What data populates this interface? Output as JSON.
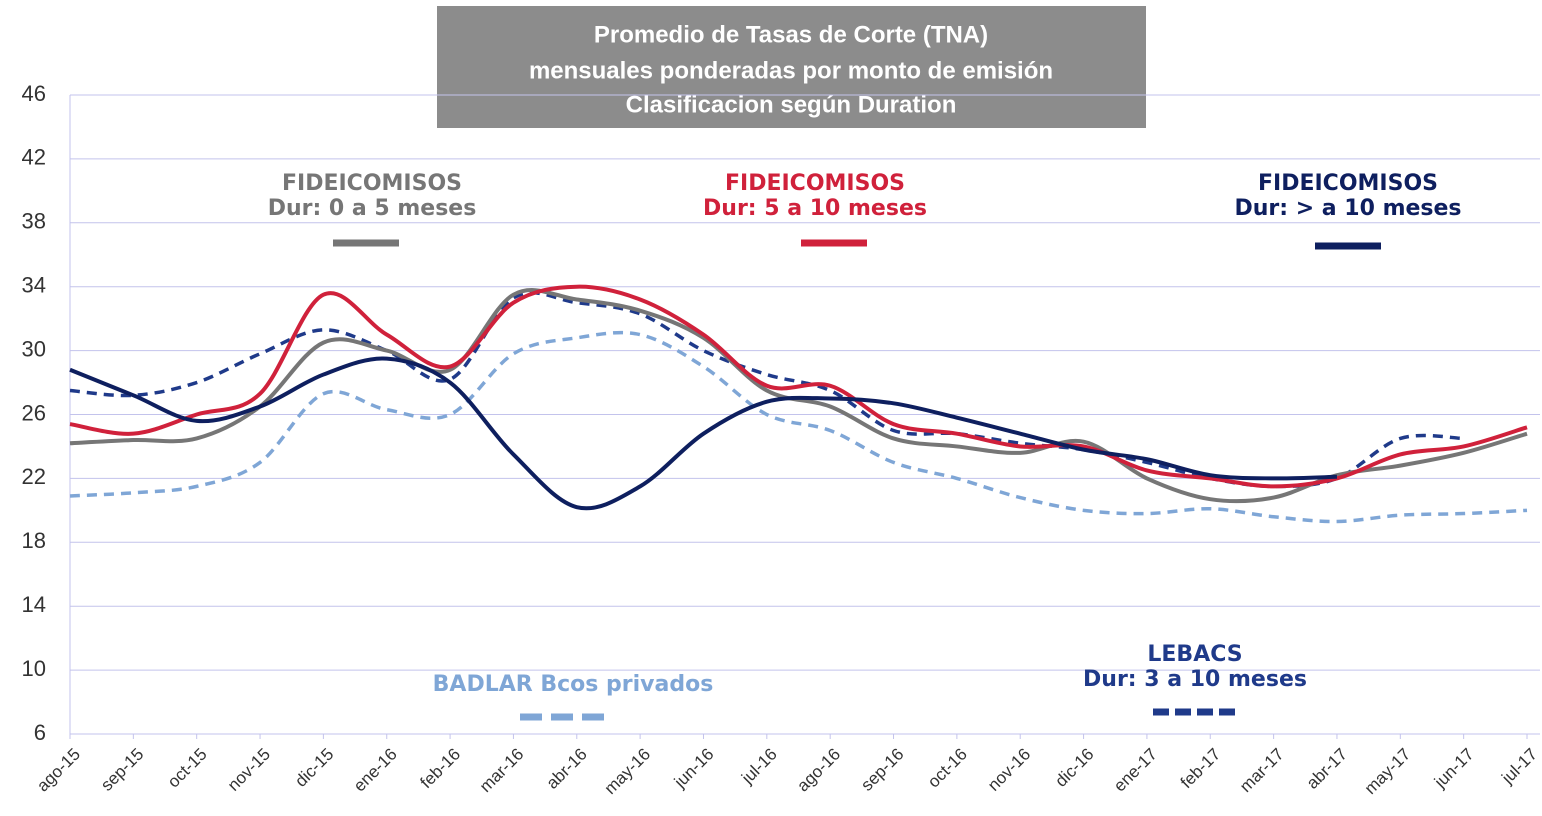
{
  "chart_data": {
    "type": "line",
    "title": [
      "Promedio de Tasas de Corte (TNA)",
      "mensuales ponderadas por monto de emisión",
      "Clasificacion según Duration"
    ],
    "categories": [
      "ago-15",
      "sep-15",
      "oct-15",
      "nov-15",
      "dic-15",
      "ene-16",
      "feb-16",
      "mar-16",
      "abr-16",
      "may-16",
      "jun-16",
      "jul-16",
      "ago-16",
      "sep-16",
      "oct-16",
      "nov-16",
      "dic-16",
      "ene-17",
      "feb-17",
      "mar-17",
      "abr-17",
      "may-17",
      "jun-17",
      "jul-17"
    ],
    "ylim": [
      6,
      46
    ],
    "yticks": [
      6,
      10,
      14,
      18,
      22,
      26,
      30,
      34,
      38,
      42,
      46
    ],
    "grid": true,
    "series": [
      {
        "name": "FIDEICOMISOS",
        "name_detail": "Dur: 0 a 5 meses",
        "color": "#767676",
        "dashed": false,
        "values": [
          24.2,
          24.4,
          24.5,
          26.5,
          30.5,
          30,
          28.8,
          33.5,
          33.2,
          32.5,
          30.8,
          27.5,
          26.5,
          24.5,
          24,
          23.6,
          24.3,
          22,
          20.7,
          20.8,
          22.2,
          22.8,
          23.6,
          24.8
        ]
      },
      {
        "name": "FIDEICOMISOS",
        "name_detail": "Dur: 5 a 10 meses",
        "color": "#d0213b",
        "dashed": false,
        "values": [
          25.4,
          24.8,
          26,
          27.3,
          33.5,
          31,
          29,
          33,
          34,
          33.2,
          31,
          27.8,
          27.8,
          25.4,
          24.8,
          24,
          24,
          22.5,
          22,
          21.5,
          22,
          23.5,
          24,
          25.2
        ]
      },
      {
        "name": "FIDEICOMISOS",
        "name_detail": "Dur: > a 10 meses",
        "color": "#0e1f5f",
        "dashed": false,
        "values": [
          28.8,
          27.2,
          25.6,
          26.5,
          28.5,
          29.5,
          28,
          23.5,
          20.2,
          21.5,
          24.8,
          26.8,
          27,
          26.7,
          25.8,
          24.8,
          23.8,
          23.2,
          22.2,
          22,
          22.1,
          null,
          null,
          null
        ]
      },
      {
        "name": "LEBACS",
        "name_detail": "Dur: 3 a 10 meses",
        "color": "#1f3a8a",
        "dashed": true,
        "values": [
          27.5,
          27.2,
          28,
          29.8,
          31.3,
          30,
          28.2,
          33.3,
          33,
          32.3,
          30,
          28.5,
          27.5,
          25,
          24.8,
          24.2,
          23.8,
          23,
          22,
          21.5,
          22,
          24.5,
          24.5,
          null
        ]
      },
      {
        "name": "BADLAR Bcos privados",
        "color": "#7fa6d6",
        "dashed": true,
        "values": [
          20.9,
          21.1,
          21.5,
          23,
          27.3,
          26.3,
          26,
          29.8,
          30.8,
          31,
          29,
          26,
          25,
          23,
          22,
          20.8,
          20,
          19.8,
          20.1,
          19.6,
          19.3,
          19.7,
          19.8,
          20
        ]
      }
    ]
  }
}
